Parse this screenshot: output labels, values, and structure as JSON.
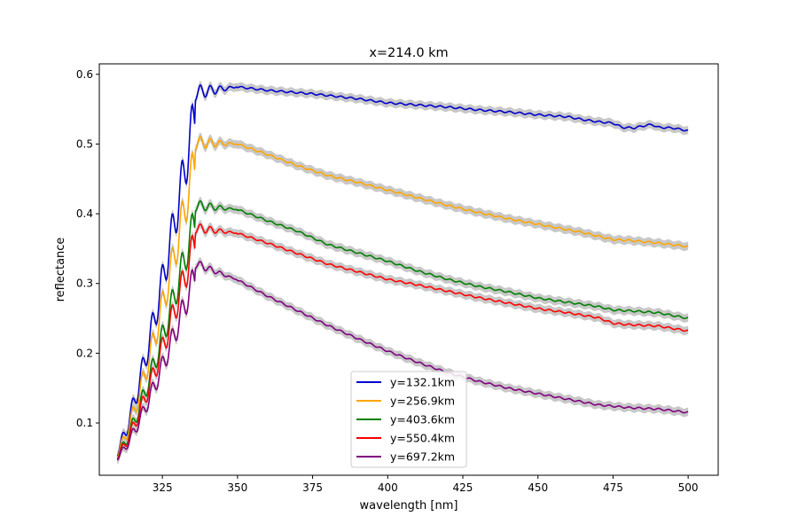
{
  "chart_data": {
    "type": "line",
    "title": "x=214.0 km",
    "xlabel": "wavelength [nm]",
    "ylabel": "reflectance",
    "xlim": [
      304,
      510
    ],
    "ylim": [
      0.025,
      0.615
    ],
    "xticks": [
      325,
      350,
      375,
      400,
      425,
      450,
      475,
      500
    ],
    "yticks": [
      0.1,
      0.2,
      0.3,
      0.4,
      0.5,
      0.6
    ],
    "xtick_labels": [
      "325",
      "350",
      "375",
      "400",
      "425",
      "450",
      "475",
      "500"
    ],
    "ytick_labels": [
      "0.1",
      "0.2",
      "0.3",
      "0.4",
      "0.5",
      "0.6"
    ],
    "grid": false,
    "legend_position": "lower-center",
    "uncertainty_band_color": "#c8c8c8",
    "series": [
      {
        "name": "y=132.1km",
        "color": "#0000cc",
        "peak": 0.585,
        "x": [
          350,
          360,
          375,
          390,
          400,
          410,
          420,
          430,
          440,
          450,
          460,
          465,
          470,
          475,
          478,
          482,
          485,
          488,
          490,
          495,
          500
        ],
        "y": [
          0.582,
          0.577,
          0.572,
          0.565,
          0.559,
          0.556,
          0.553,
          0.549,
          0.546,
          0.542,
          0.539,
          0.535,
          0.532,
          0.53,
          0.524,
          0.523,
          0.526,
          0.528,
          0.524,
          0.523,
          0.519
        ]
      },
      {
        "name": "y=256.9km",
        "color": "#ffa500",
        "peak": 0.512,
        "x": [
          350,
          360,
          370,
          380,
          390,
          400,
          410,
          420,
          430,
          440,
          450,
          460,
          465,
          470,
          475,
          480,
          490,
          500
        ],
        "y": [
          0.5,
          0.485,
          0.469,
          0.455,
          0.445,
          0.434,
          0.423,
          0.412,
          0.402,
          0.393,
          0.385,
          0.377,
          0.373,
          0.368,
          0.363,
          0.362,
          0.358,
          0.353
        ]
      },
      {
        "name": "y=403.6km",
        "color": "#008000",
        "peak": 0.42,
        "x": [
          350,
          360,
          370,
          380,
          390,
          400,
          410,
          420,
          430,
          440,
          450,
          460,
          470,
          475,
          480,
          490,
          500
        ],
        "y": [
          0.406,
          0.39,
          0.375,
          0.356,
          0.344,
          0.332,
          0.318,
          0.306,
          0.296,
          0.288,
          0.279,
          0.273,
          0.267,
          0.262,
          0.261,
          0.258,
          0.25
        ]
      },
      {
        "name": "y=550.4km",
        "color": "#ff0000",
        "peak": 0.387,
        "x": [
          350,
          360,
          370,
          380,
          390,
          400,
          410,
          420,
          430,
          440,
          450,
          460,
          470,
          475,
          480,
          490,
          500
        ],
        "y": [
          0.372,
          0.358,
          0.343,
          0.328,
          0.317,
          0.306,
          0.298,
          0.289,
          0.28,
          0.272,
          0.264,
          0.258,
          0.251,
          0.243,
          0.241,
          0.239,
          0.232
        ]
      },
      {
        "name": "y=697.2km",
        "color": "#800080",
        "peak": 0.335,
        "x": [
          350,
          360,
          370,
          380,
          390,
          400,
          410,
          420,
          430,
          440,
          450,
          460,
          470,
          475,
          480,
          490,
          500
        ],
        "y": [
          0.305,
          0.282,
          0.261,
          0.24,
          0.221,
          0.203,
          0.187,
          0.172,
          0.16,
          0.15,
          0.142,
          0.134,
          0.126,
          0.124,
          0.122,
          0.12,
          0.115
        ]
      }
    ]
  }
}
